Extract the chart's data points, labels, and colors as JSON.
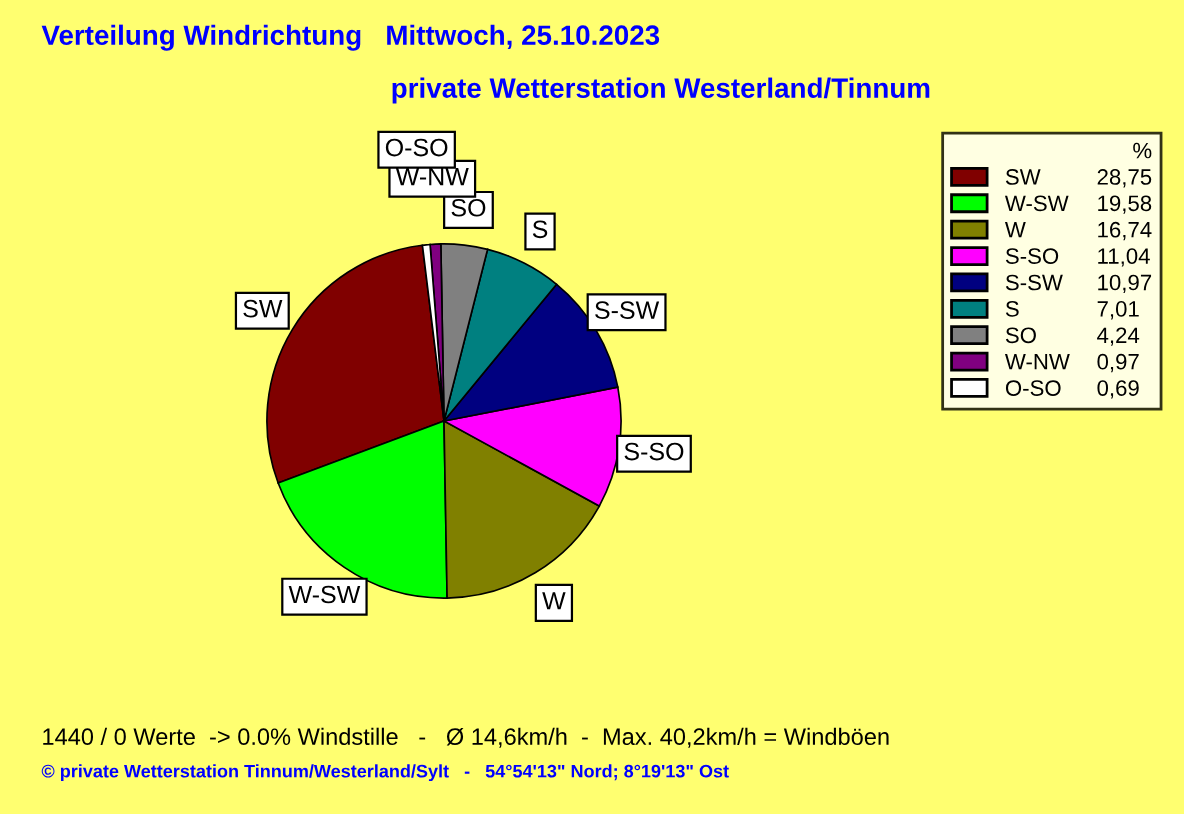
{
  "chart_data": {
    "type": "pie",
    "title": "Verteilung Windrichtung   Mittwoch, 25.10.2023",
    "subtitle": "private Wetterstation Westerland/Tinnum",
    "categories": [
      "SW",
      "W-SW",
      "W",
      "S-SO",
      "S-SW",
      "S",
      "SO",
      "W-NW",
      "O-SO"
    ],
    "values": [
      28.75,
      19.58,
      16.74,
      11.04,
      10.97,
      7.01,
      4.24,
      0.97,
      0.69
    ],
    "colors": [
      "#800000",
      "#00ff00",
      "#808000",
      "#ff00ff",
      "#000080",
      "#008080",
      "#808080",
      "#800080",
      "#ffffff"
    ],
    "value_labels": [
      "28,75",
      "19,58",
      "16,74",
      "11,04",
      "10,97",
      "7,01",
      "4,24",
      "0,97",
      "0,69"
    ],
    "legend_title": "%",
    "legend": "top right",
    "annotations": [
      "1440 / 0 Werte  -> 0.0% Windstille   -   Ø 14,6km/h  -  Max. 40,2km/h = Windböen",
      "© private Wetterstation Tinnum/Westerland/Sylt   -   54°54'13\" Nord; 8°19'13\" Ost"
    ]
  }
}
